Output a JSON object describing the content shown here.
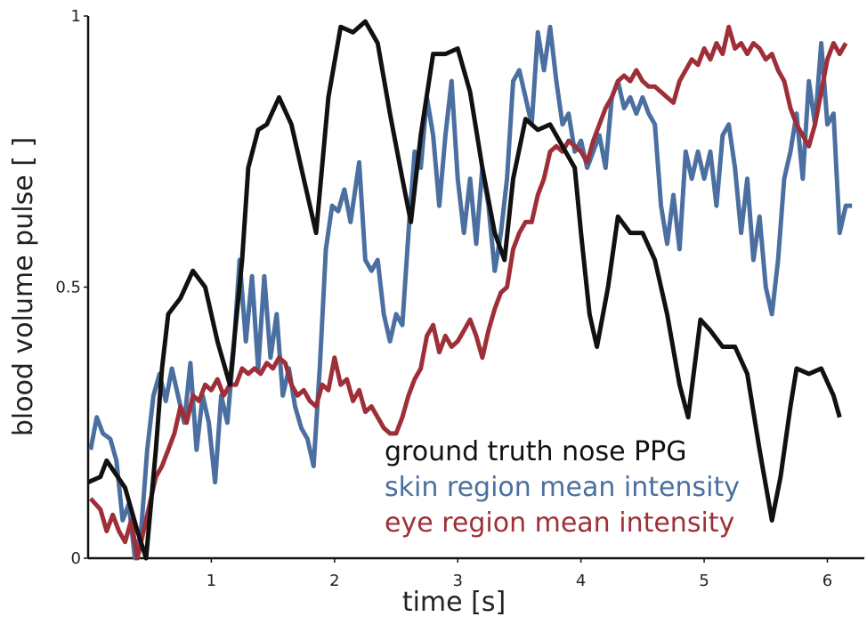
{
  "chart_data": {
    "type": "line",
    "xlabel": "time [s]",
    "ylabel": "blood volume pulse [ ]",
    "xlim": [
      0,
      6.3
    ],
    "ylim": [
      0,
      1
    ],
    "xticks": [
      1,
      2,
      3,
      4,
      5,
      6
    ],
    "yticks": [
      0,
      0.5,
      1
    ],
    "grid": false,
    "legend": "lower right",
    "series": [
      {
        "name": "ground truth nose PPG",
        "color": "#111111",
        "x": [
          0,
          0.1,
          0.15,
          0.3,
          0.4,
          0.47,
          0.55,
          0.6,
          0.65,
          0.75,
          0.85,
          0.95,
          1.05,
          1.15,
          1.25,
          1.3,
          1.38,
          1.45,
          1.55,
          1.65,
          1.75,
          1.85,
          1.95,
          2.05,
          2.15,
          2.25,
          2.35,
          2.45,
          2.55,
          2.62,
          2.7,
          2.8,
          2.9,
          3.0,
          3.1,
          3.2,
          3.3,
          3.38,
          3.45,
          3.55,
          3.65,
          3.75,
          3.85,
          3.95,
          4.0,
          4.07,
          4.13,
          4.22,
          4.3,
          4.4,
          4.5,
          4.6,
          4.7,
          4.8,
          4.87,
          4.97,
          5.05,
          5.15,
          5.25,
          5.35,
          5.45,
          5.55,
          5.62,
          5.7,
          5.75,
          5.85,
          5.95,
          6.05,
          6.1
        ],
        "values": [
          0.14,
          0.15,
          0.18,
          0.13,
          0.05,
          0.0,
          0.2,
          0.35,
          0.45,
          0.48,
          0.53,
          0.5,
          0.4,
          0.32,
          0.55,
          0.72,
          0.79,
          0.8,
          0.85,
          0.8,
          0.7,
          0.6,
          0.85,
          0.98,
          0.97,
          0.99,
          0.95,
          0.82,
          0.7,
          0.62,
          0.78,
          0.93,
          0.93,
          0.94,
          0.86,
          0.72,
          0.6,
          0.55,
          0.7,
          0.81,
          0.79,
          0.8,
          0.76,
          0.72,
          0.6,
          0.45,
          0.39,
          0.5,
          0.63,
          0.6,
          0.6,
          0.55,
          0.45,
          0.32,
          0.26,
          0.44,
          0.42,
          0.39,
          0.39,
          0.34,
          0.2,
          0.07,
          0.15,
          0.28,
          0.35,
          0.34,
          0.35,
          0.3,
          0.26
        ]
      },
      {
        "name": "skin region mean intensity",
        "color": "#4a6fa0",
        "x": [
          0.02,
          0.07,
          0.12,
          0.18,
          0.23,
          0.28,
          0.33,
          0.38,
          0.43,
          0.48,
          0.53,
          0.58,
          0.63,
          0.68,
          0.73,
          0.78,
          0.83,
          0.88,
          0.93,
          0.98,
          1.03,
          1.08,
          1.13,
          1.18,
          1.23,
          1.28,
          1.33,
          1.38,
          1.43,
          1.48,
          1.53,
          1.58,
          1.63,
          1.68,
          1.73,
          1.78,
          1.83,
          1.88,
          1.93,
          1.98,
          2.03,
          2.08,
          2.13,
          2.2,
          2.25,
          2.3,
          2.35,
          2.4,
          2.45,
          2.5,
          2.55,
          2.6,
          2.65,
          2.7,
          2.75,
          2.8,
          2.85,
          2.9,
          2.95,
          3.0,
          3.05,
          3.1,
          3.15,
          3.2,
          3.25,
          3.3,
          3.35,
          3.4,
          3.45,
          3.5,
          3.55,
          3.6,
          3.65,
          3.7,
          3.75,
          3.8,
          3.85,
          3.9,
          3.95,
          4.0,
          4.05,
          4.1,
          4.15,
          4.2,
          4.25,
          4.3,
          4.35,
          4.4,
          4.45,
          4.5,
          4.55,
          4.6,
          4.65,
          4.7,
          4.75,
          4.8,
          4.85,
          4.9,
          4.95,
          5.0,
          5.05,
          5.1,
          5.15,
          5.2,
          5.25,
          5.3,
          5.35,
          5.4,
          5.45,
          5.5,
          5.55,
          5.6,
          5.65,
          5.7,
          5.75,
          5.8,
          5.85,
          5.9,
          5.95,
          6.0,
          6.05,
          6.1,
          6.15,
          6.2
        ],
        "values": [
          0.2,
          0.26,
          0.23,
          0.22,
          0.18,
          0.07,
          0.1,
          0.0,
          0.05,
          0.2,
          0.3,
          0.34,
          0.29,
          0.35,
          0.3,
          0.25,
          0.36,
          0.2,
          0.3,
          0.25,
          0.14,
          0.3,
          0.25,
          0.38,
          0.55,
          0.4,
          0.52,
          0.35,
          0.52,
          0.37,
          0.45,
          0.3,
          0.35,
          0.28,
          0.24,
          0.22,
          0.17,
          0.35,
          0.57,
          0.65,
          0.64,
          0.68,
          0.62,
          0.73,
          0.55,
          0.53,
          0.55,
          0.45,
          0.4,
          0.45,
          0.43,
          0.6,
          0.75,
          0.72,
          0.85,
          0.78,
          0.65,
          0.78,
          0.88,
          0.7,
          0.6,
          0.7,
          0.58,
          0.72,
          0.65,
          0.53,
          0.6,
          0.7,
          0.88,
          0.9,
          0.85,
          0.8,
          0.97,
          0.9,
          0.98,
          0.88,
          0.8,
          0.82,
          0.75,
          0.77,
          0.72,
          0.75,
          0.78,
          0.72,
          0.85,
          0.88,
          0.83,
          0.85,
          0.82,
          0.85,
          0.82,
          0.8,
          0.65,
          0.58,
          0.67,
          0.57,
          0.75,
          0.7,
          0.75,
          0.7,
          0.75,
          0.65,
          0.78,
          0.8,
          0.72,
          0.6,
          0.7,
          0.55,
          0.63,
          0.5,
          0.45,
          0.55,
          0.7,
          0.75,
          0.82,
          0.7,
          0.88,
          0.8,
          0.95,
          0.8,
          0.82,
          0.6,
          0.65,
          0.65
        ]
      },
      {
        "name": "eye region mean intensity",
        "color": "#9e2f38",
        "x": [
          0.02,
          0.1,
          0.15,
          0.2,
          0.25,
          0.3,
          0.35,
          0.4,
          0.45,
          0.5,
          0.55,
          0.6,
          0.65,
          0.7,
          0.75,
          0.8,
          0.85,
          0.9,
          0.95,
          1.0,
          1.05,
          1.1,
          1.15,
          1.2,
          1.25,
          1.3,
          1.35,
          1.4,
          1.45,
          1.5,
          1.55,
          1.6,
          1.65,
          1.7,
          1.75,
          1.8,
          1.85,
          1.9,
          1.95,
          2.0,
          2.05,
          2.1,
          2.15,
          2.2,
          2.25,
          2.3,
          2.35,
          2.4,
          2.45,
          2.5,
          2.55,
          2.6,
          2.65,
          2.7,
          2.75,
          2.8,
          2.85,
          2.9,
          2.95,
          3.0,
          3.05,
          3.1,
          3.15,
          3.2,
          3.25,
          3.3,
          3.35,
          3.4,
          3.45,
          3.5,
          3.55,
          3.6,
          3.65,
          3.7,
          3.75,
          3.8,
          3.85,
          3.9,
          3.95,
          4.0,
          4.05,
          4.1,
          4.15,
          4.2,
          4.25,
          4.3,
          4.35,
          4.4,
          4.45,
          4.5,
          4.55,
          4.6,
          4.65,
          4.7,
          4.75,
          4.8,
          4.85,
          4.9,
          4.95,
          5.0,
          5.05,
          5.1,
          5.15,
          5.2,
          5.25,
          5.3,
          5.35,
          5.4,
          5.45,
          5.5,
          5.55,
          5.6,
          5.65,
          5.7,
          5.75,
          5.8,
          5.85,
          5.9,
          5.95,
          6.0,
          6.05,
          6.1,
          6.15
        ],
        "values": [
          0.11,
          0.09,
          0.05,
          0.08,
          0.05,
          0.03,
          0.07,
          0.0,
          0.05,
          0.1,
          0.15,
          0.17,
          0.2,
          0.23,
          0.28,
          0.25,
          0.3,
          0.29,
          0.32,
          0.31,
          0.33,
          0.3,
          0.32,
          0.32,
          0.35,
          0.34,
          0.35,
          0.34,
          0.36,
          0.35,
          0.37,
          0.36,
          0.32,
          0.3,
          0.31,
          0.29,
          0.28,
          0.32,
          0.31,
          0.37,
          0.32,
          0.33,
          0.29,
          0.31,
          0.27,
          0.28,
          0.26,
          0.24,
          0.23,
          0.23,
          0.26,
          0.3,
          0.33,
          0.35,
          0.41,
          0.43,
          0.38,
          0.41,
          0.39,
          0.4,
          0.42,
          0.44,
          0.41,
          0.37,
          0.42,
          0.46,
          0.49,
          0.5,
          0.57,
          0.6,
          0.62,
          0.62,
          0.67,
          0.7,
          0.75,
          0.76,
          0.75,
          0.77,
          0.76,
          0.75,
          0.73,
          0.77,
          0.8,
          0.83,
          0.85,
          0.88,
          0.89,
          0.88,
          0.9,
          0.88,
          0.87,
          0.87,
          0.86,
          0.85,
          0.84,
          0.88,
          0.9,
          0.92,
          0.91,
          0.94,
          0.92,
          0.95,
          0.93,
          0.98,
          0.94,
          0.95,
          0.93,
          0.95,
          0.94,
          0.92,
          0.93,
          0.9,
          0.88,
          0.83,
          0.8,
          0.78,
          0.76,
          0.8,
          0.86,
          0.92,
          0.95,
          0.93,
          0.95
        ]
      }
    ]
  }
}
